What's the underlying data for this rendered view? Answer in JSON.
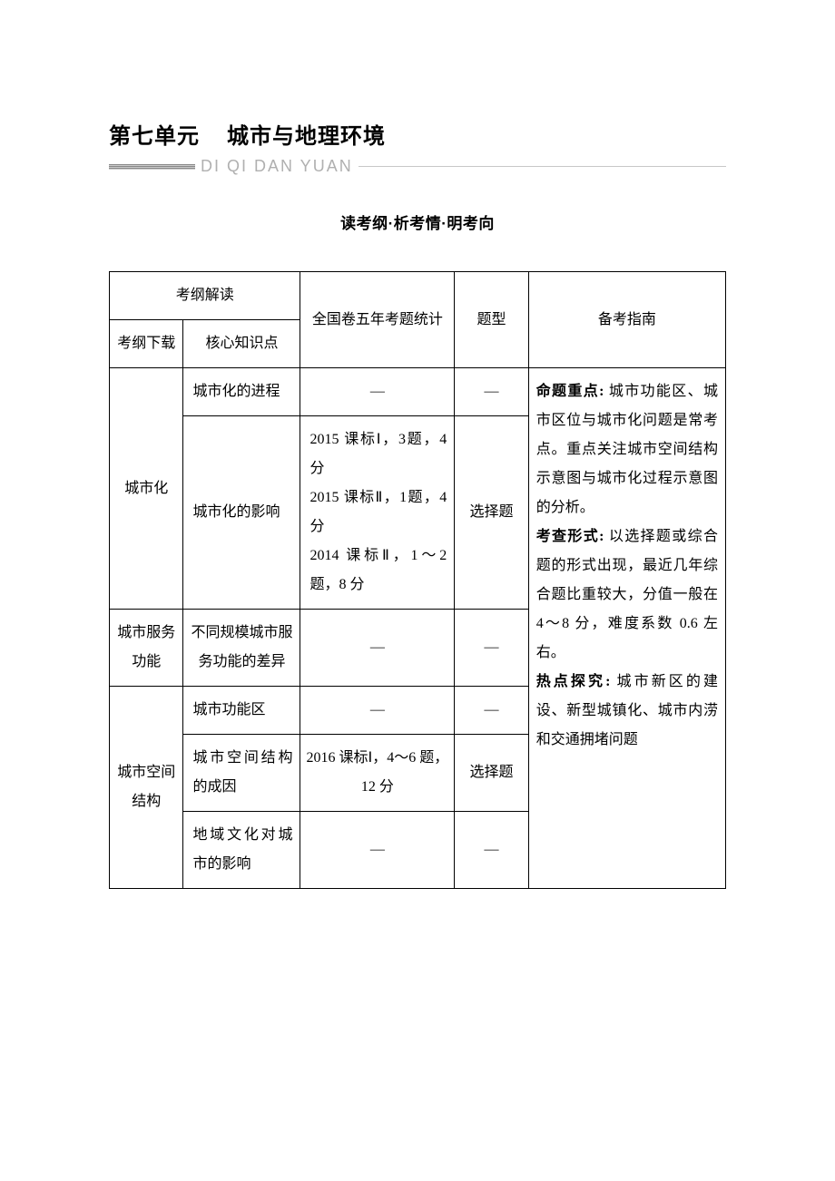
{
  "header": {
    "unit_label": "第七单元",
    "unit_title": "城市与地理环境",
    "pinyin": "DI QI DAN YUAN",
    "section_sub": "读考纲·析考情·明考向"
  },
  "table": {
    "headers": {
      "outline_group": "考纲解读",
      "outline_download": "考纲下载",
      "core_point": "核心知识点",
      "five_year": "全国卷五年考题统计",
      "q_type": "题型",
      "guide": "备考指南"
    },
    "dash": "—",
    "rows": {
      "r1": {
        "section": "城市化",
        "point": "城市化的进程",
        "stat": "—",
        "type": "—"
      },
      "r2": {
        "point": "城市化的影响",
        "stat": "2015 课标Ⅰ，3题，4 分\n2015 课标Ⅱ，1题，4 分\n2014 课标Ⅱ，1～2 题，8 分",
        "type": "选择题"
      },
      "r3": {
        "section": "城市服务功能",
        "point": "不同规模城市服务功能的差异",
        "stat": "—",
        "type": "—"
      },
      "r4": {
        "section": "城市空间结构",
        "point": "城市功能区",
        "stat": "—",
        "type": "—"
      },
      "r5": {
        "point": "城市空间结构的成因",
        "stat": "2016 课标Ⅰ，4～6 题，12 分",
        "type": "选择题"
      },
      "r6": {
        "point": "地域文化对城市的影响",
        "stat": "—",
        "type": "—"
      }
    },
    "guide": {
      "label_focus": "命题重点:",
      "text_focus": " 城市功能区、城市区位与城市化问题是常考点。重点关注城市空间结构示意图与城市化过程示意图的分析。",
      "label_form": "考查形式:",
      "text_form": " 以选择题或综合题的形式出现，最近几年综合题比重较大，分值一般在 4～8 分，难度系数 0.6 左右。",
      "label_hot": "热点探究:",
      "text_hot": " 城市新区的建设、新型城镇化、城市内涝和交通拥堵问题"
    }
  }
}
